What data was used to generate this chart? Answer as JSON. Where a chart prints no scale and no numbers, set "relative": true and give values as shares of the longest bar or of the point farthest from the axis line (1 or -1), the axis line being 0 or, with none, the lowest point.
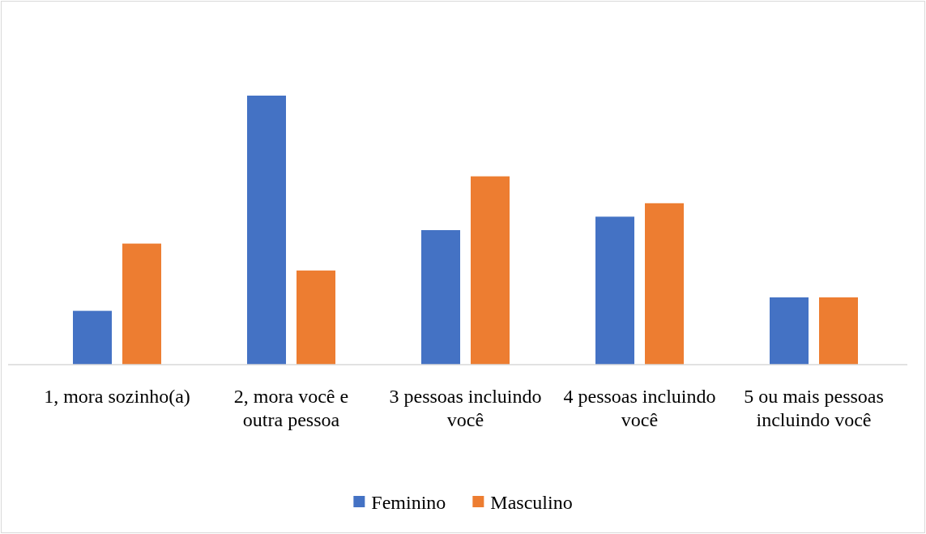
{
  "chart_data": {
    "type": "bar",
    "relative": true,
    "categories": [
      "1, mora sozinho(a)",
      "2, mora você e outra pessoa",
      "3 pessoas incluindo você",
      "4 pessoas incluindo você",
      "5 ou mais pessoas incluindo você"
    ],
    "series": [
      {
        "name": "Feminino",
        "color": "#4472c4",
        "values": [
          0.2,
          1,
          0.5,
          0.55,
          0.25
        ]
      },
      {
        "name": "Masculino",
        "color": "#ed7d31",
        "values": [
          0.45,
          0.35,
          0.7,
          0.6,
          0.25
        ]
      }
    ],
    "legend": "bottom"
  }
}
